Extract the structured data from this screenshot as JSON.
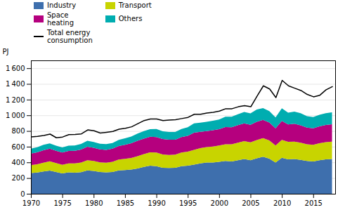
{
  "chart_data": {
    "type": "area",
    "stacked": true,
    "ylabel": "PJ",
    "x": [
      1970,
      1971,
      1972,
      1973,
      1974,
      1975,
      1976,
      1977,
      1978,
      1979,
      1980,
      1981,
      1982,
      1983,
      1984,
      1985,
      1986,
      1987,
      1988,
      1989,
      1990,
      1991,
      1992,
      1993,
      1994,
      1995,
      1996,
      1997,
      1998,
      1999,
      2000,
      2001,
      2002,
      2003,
      2004,
      2005,
      2006,
      2007,
      2008,
      2009,
      2010,
      2011,
      2012,
      2013,
      2014,
      2015,
      2016,
      2017,
      2018
    ],
    "series": [
      {
        "name": "Industry",
        "type": "area",
        "color": "#3e6fad",
        "values": [
          265,
          270,
          285,
          295,
          278,
          260,
          272,
          268,
          275,
          298,
          290,
          278,
          272,
          278,
          298,
          303,
          308,
          322,
          342,
          358,
          352,
          332,
          328,
          332,
          352,
          358,
          372,
          388,
          398,
          398,
          408,
          418,
          412,
          428,
          442,
          428,
          452,
          472,
          448,
          398,
          458,
          438,
          442,
          432,
          418,
          412,
          428,
          438,
          442
        ]
      },
      {
        "name": "Transport",
        "type": "area",
        "color": "#c8d400",
        "values": [
          100,
          105,
          112,
          118,
          113,
          110,
          116,
          118,
          123,
          130,
          128,
          123,
          123,
          128,
          138,
          143,
          148,
          156,
          163,
          170,
          173,
          168,
          166,
          166,
          173,
          178,
          188,
          193,
          198,
          203,
          208,
          213,
          218,
          223,
          228,
          228,
          233,
          236,
          233,
          218,
          228,
          223,
          223,
          218,
          213,
          213,
          216,
          220,
          223
        ]
      },
      {
        "name": "Space\nheating",
        "type": "area",
        "color": "#b5007e",
        "values": [
          148,
          152,
          158,
          162,
          158,
          155,
          158,
          162,
          165,
          172,
          168,
          165,
          165,
          168,
          173,
          178,
          188,
          198,
          198,
          198,
          198,
          198,
          195,
          192,
          198,
          203,
          218,
          208,
          203,
          208,
          208,
          218,
          218,
          223,
          228,
          223,
          233,
          233,
          228,
          218,
          243,
          223,
          228,
          223,
          213,
          210,
          215,
          218,
          220
        ]
      },
      {
        "name": "Others",
        "type": "area",
        "color": "#00adb0",
        "values": [
          62,
          65,
          68,
          68,
          65,
          65,
          68,
          68,
          72,
          75,
          73,
          72,
          72,
          73,
          78,
          82,
          85,
          92,
          95,
          98,
          102,
          98,
          98,
          98,
          103,
          108,
          118,
          118,
          118,
          122,
          123,
          132,
          135,
          140,
          145,
          145,
          155,
          150,
          145,
          140,
          160,
          150,
          153,
          153,
          145,
          143,
          147,
          150,
          153
        ]
      },
      {
        "name": "Total energy\nconsumption",
        "type": "line",
        "color": "#000000",
        "values": [
          730,
          735,
          748,
          765,
          718,
          728,
          758,
          760,
          768,
          818,
          808,
          778,
          788,
          798,
          828,
          838,
          858,
          898,
          938,
          958,
          958,
          938,
          943,
          948,
          963,
          978,
          1018,
          1018,
          1033,
          1043,
          1058,
          1088,
          1088,
          1113,
          1128,
          1113,
          1250,
          1380,
          1340,
          1230,
          1450,
          1380,
          1350,
          1320,
          1270,
          1240,
          1260,
          1330,
          1370
        ]
      }
    ],
    "xlim": [
      1970,
      2018.5
    ],
    "xticks": [
      1970,
      1975,
      1980,
      1985,
      1990,
      1995,
      2000,
      2005,
      2010,
      2015
    ],
    "ylim": [
      0,
      1700
    ],
    "yticks": [
      0,
      200,
      400,
      600,
      800,
      {
        "value": 1000,
        "label": "1 000"
      },
      {
        "value": 1200,
        "label": "1 200"
      },
      {
        "value": 1400,
        "label": "1 400"
      },
      {
        "value": 1600,
        "label": "1 600"
      }
    ],
    "grid": true,
    "legend": "top"
  }
}
